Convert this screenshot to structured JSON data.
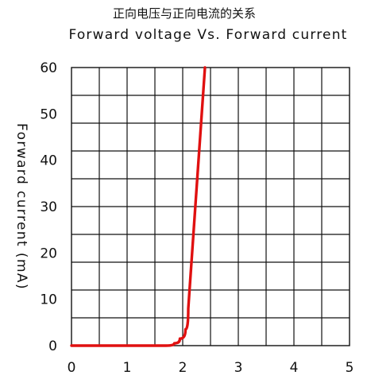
{
  "chart_data": {
    "type": "line",
    "title": "正向电压与正向电流的关系",
    "subtitle": "Forward voltage Vs. Forward current",
    "xlabel": "",
    "ylabel": "Forward current (mA)",
    "xlim": [
      0,
      5
    ],
    "ylim": [
      0,
      60
    ],
    "xticks": [
      "0",
      "1",
      "2",
      "3",
      "4",
      "5"
    ],
    "yticks": [
      "0",
      "10",
      "20",
      "30",
      "40",
      "50",
      "60"
    ],
    "grid": true,
    "series": [
      {
        "color": "#e01010",
        "x": [
          0,
          1.0,
          1.7,
          1.85,
          1.95,
          2.05,
          2.1,
          2.4
        ],
        "y": [
          0,
          0,
          0,
          0.5,
          1.5,
          3.5,
          8,
          60
        ]
      }
    ]
  }
}
